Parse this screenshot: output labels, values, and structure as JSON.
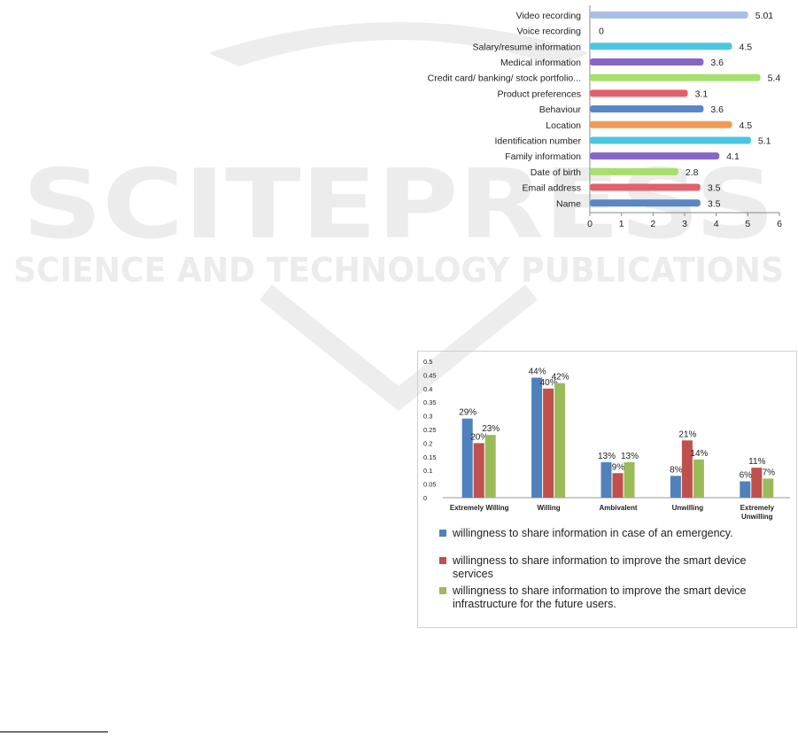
{
  "watermark": {
    "main": "SCITEPRESS",
    "sub": "SCIENCE AND TECHNOLOGY PUBLICATIONS"
  },
  "colors": {
    "blue": "#4f81bd",
    "red": "#c0504d",
    "green": "#9bbb59",
    "lightblue": "#a7bfe6",
    "cyan": "#4bc6e0",
    "purple": "#8a66c4",
    "lightgreen": "#a6e06b",
    "pink": "#e0616b",
    "orange": "#f09a55",
    "steel": "#5b86c5"
  },
  "chart_data": [
    {
      "type": "bar",
      "orientation": "horizontal",
      "categories": [
        "Video recording",
        "Voice recording",
        "Salary/resume information",
        "Medical information",
        "Credit card/ banking/ stock portfolio...",
        "Product preferences",
        "Behaviour",
        "Location",
        "Identification number",
        "Family information",
        "Date of birth",
        "Email address",
        "Name"
      ],
      "values": [
        5.01,
        0,
        4.5,
        3.6,
        5.4,
        3.1,
        3.6,
        4.5,
        5.1,
        4.1,
        2.8,
        3.5,
        3.5
      ],
      "value_labels": [
        "5.01",
        "0",
        "4.5",
        "3.6",
        "5.4",
        "3.1",
        "3.6",
        "4.5",
        "5.1",
        "4.1",
        "2.8",
        "3.5",
        "3.5"
      ],
      "bar_colors": [
        "lightblue",
        "lightblue",
        "cyan",
        "purple",
        "lightgreen",
        "pink",
        "steel",
        "orange",
        "cyan",
        "purple",
        "lightgreen",
        "pink",
        "steel"
      ],
      "xlim": [
        0,
        6
      ],
      "xticks": [
        "0",
        "1",
        "2",
        "3",
        "4",
        "5",
        "6"
      ]
    },
    {
      "type": "bar",
      "categories": [
        "Extremely Willing",
        "Willing",
        "Ambivalent",
        "Unwilling",
        "Extremely Unwilling"
      ],
      "series": [
        {
          "name": "willingness to share  information  in case of an emergency.",
          "values": [
            0.29,
            0.44,
            0.13,
            0.08,
            0.06
          ],
          "labels": [
            "29%",
            "44%",
            "13%",
            "8%",
            "6%"
          ],
          "color": "blue"
        },
        {
          "name": "willingness to share  information to improve the smart device services",
          "values": [
            0.2,
            0.4,
            0.09,
            0.21,
            0.11
          ],
          "labels": [
            "20%",
            "40%",
            "9%",
            "21%",
            "11%"
          ],
          "color": "red"
        },
        {
          "name": "willingness to share  information to improve the smart device infrastructure for the future users.",
          "values": [
            0.23,
            0.42,
            0.13,
            0.14,
            0.07
          ],
          "labels": [
            "23%",
            "42%",
            "13%",
            "14%",
            "7%"
          ],
          "color": "green"
        }
      ],
      "ylim": [
        0,
        0.5
      ],
      "yticks": [
        "0",
        "0.05",
        "0.1",
        "0.15",
        "0.2",
        "0.25",
        "0.3",
        "0.35",
        "0.4",
        "0.45",
        "0.5"
      ],
      "legend_position": "bottom"
    }
  ]
}
